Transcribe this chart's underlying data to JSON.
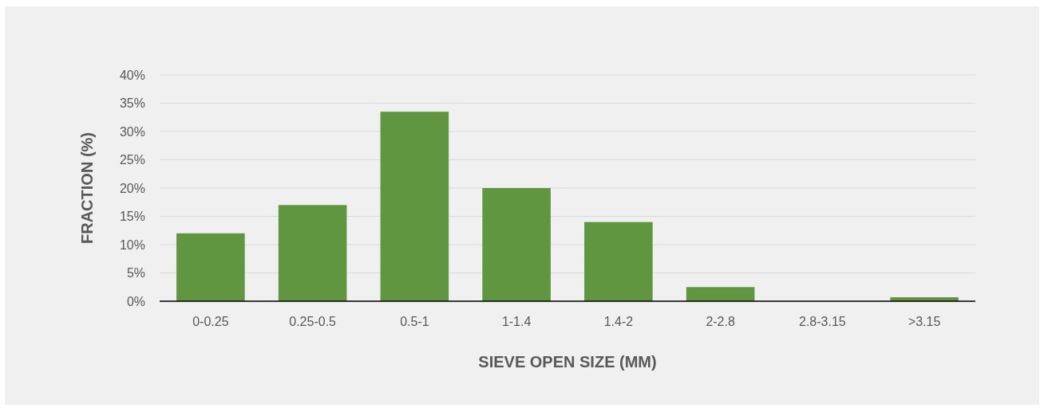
{
  "chart_data": {
    "type": "bar",
    "xlabel": "SIEVE OPEN SIZE (MM)",
    "ylabel": "FRACTION (%)",
    "categories": [
      "0-0.25",
      "0.25-0.5",
      "0.5-1",
      "1-1.4",
      "1.4-2",
      "2-2.8",
      "2.8-3.15",
      ">3.15"
    ],
    "values": [
      12,
      17,
      33.5,
      20,
      14,
      2.5,
      0,
      0.7
    ],
    "color": "#619641",
    "ylim": [
      0,
      40
    ],
    "yticks": [
      {
        "value": 0,
        "label": "0%"
      },
      {
        "value": 5,
        "label": "5%"
      },
      {
        "value": 10,
        "label": "10%"
      },
      {
        "value": 15,
        "label": "15%"
      },
      {
        "value": 20,
        "label": "20%"
      },
      {
        "value": 25,
        "label": "25%"
      },
      {
        "value": 30,
        "label": "30%"
      },
      {
        "value": 35,
        "label": "35%"
      },
      {
        "value": 40,
        "label": "40%"
      }
    ],
    "grid": "y"
  }
}
